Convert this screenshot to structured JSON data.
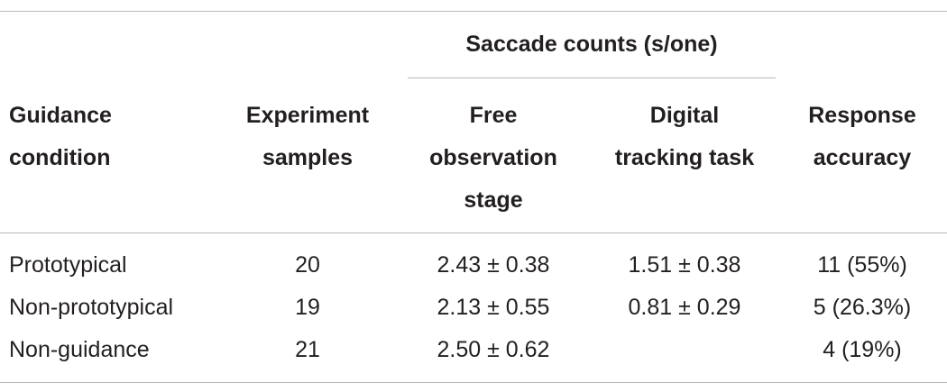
{
  "table": {
    "group_header": "Saccade counts (s/one)",
    "columns": {
      "condition": [
        "Guidance",
        "condition"
      ],
      "samples": [
        "Experiment",
        "samples"
      ],
      "free": [
        "Free",
        "observation",
        "stage"
      ],
      "digital": [
        "Digital",
        "tracking task"
      ],
      "accuracy": [
        "Response",
        "accuracy"
      ]
    },
    "rows": [
      {
        "condition": "Prototypical",
        "samples": "20",
        "free": "2.43 ± 0.38",
        "digital": "1.51 ± 0.38",
        "accuracy": "11  (55%)"
      },
      {
        "condition": "Non-prototypical",
        "samples": "19",
        "free": "2.13 ± 0.55",
        "digital": "0.81 ± 0.29",
        "accuracy": "5  (26.3%)"
      },
      {
        "condition": "Non-guidance",
        "samples": "21",
        "free": "2.50 ± 0.62",
        "digital": "",
        "accuracy": "4  (19%)"
      }
    ]
  }
}
